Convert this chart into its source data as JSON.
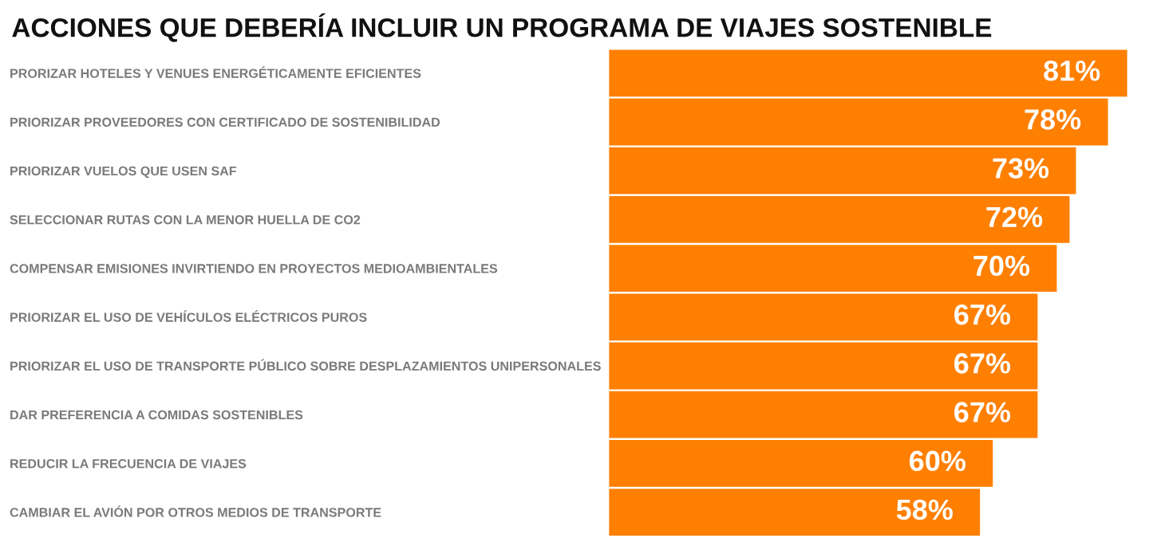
{
  "chart_data": {
    "type": "bar",
    "orientation": "horizontal",
    "title": "ACCIONES QUE DEBERÍA INCLUIR UN PROGRAMA DE VIAJES SOSTENIBLE",
    "categories": [
      "PRORIZAR HOTELES Y VENUES ENERGÉTICAMENTE EFICIENTES",
      "PRIORIZAR PROVEEDORES CON CERTIFICADO DE SOSTENIBILIDAD",
      "PRIORIZAR VUELOS QUE USEN SAF",
      "SELECCIONAR RUTAS CON LA MENOR HUELLA DE CO2",
      "COMPENSAR EMISIONES INVIRTIENDO EN PROYECTOS MEDIOAMBIENTALES",
      "PRIORIZAR EL USO DE VEHÍCULOS ELÉCTRICOS PUROS",
      "PRIORIZAR EL USO DE TRANSPORTE PÚBLICO SOBRE DESPLAZAMIENTOS UNIPERSONALES",
      "DAR PREFERENCIA A COMIDAS SOSTENIBLES",
      "REDUCIR LA FRECUENCIA DE VIAJES",
      "CAMBIAR EL AVIÓN POR OTROS MEDIOS DE TRANSPORTE"
    ],
    "values": [
      81,
      78,
      73,
      72,
      70,
      67,
      67,
      67,
      60,
      58
    ],
    "value_labels": [
      "81%",
      "78%",
      "73%",
      "72%",
      "70%",
      "67%",
      "67%",
      "67%",
      "60%",
      "58%"
    ],
    "color": "#ff7f00"
  }
}
